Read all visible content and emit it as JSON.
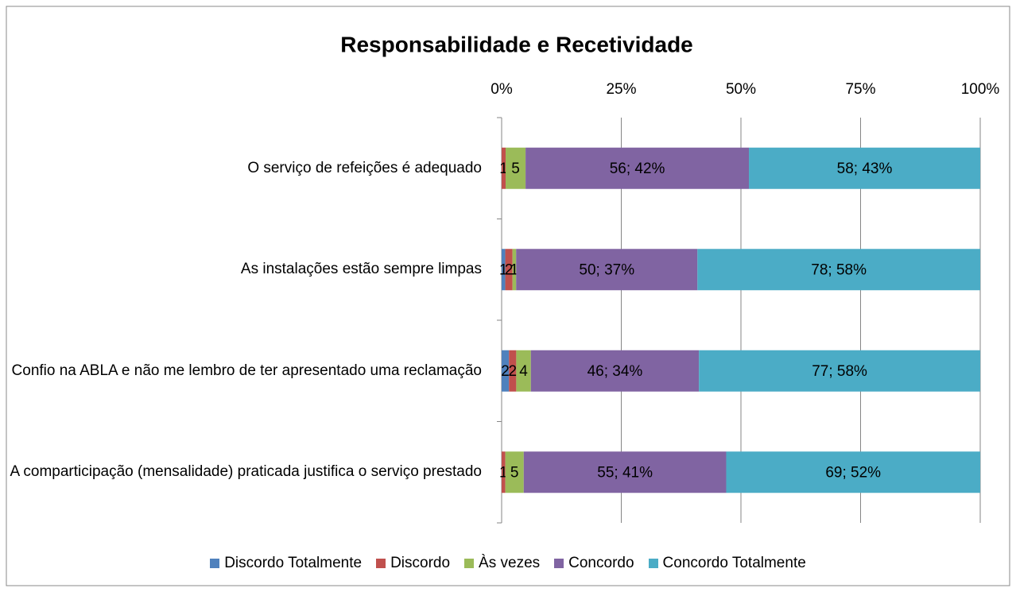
{
  "chart_data": {
    "type": "bar",
    "orientation": "horizontal",
    "stacking": "percent",
    "title": "Responsabilidade e Recetividade",
    "categories": [
      "O serviço de refeições é adequado",
      "As instalações estão sempre limpas",
      "Confio na ABLA e não me lembro de ter apresentado uma reclamação",
      "A comparticipação (mensalidade) praticada justifica o serviço prestado"
    ],
    "series": [
      {
        "name": "Discordo Totalmente",
        "color": "#4f81bd",
        "values": [
          0,
          1,
          2,
          0
        ],
        "value_labels": [
          null,
          "1",
          "2",
          null
        ]
      },
      {
        "name": "Discordo",
        "color": "#c0504d",
        "values": [
          1,
          2,
          2,
          1
        ],
        "value_labels": [
          "1",
          "2",
          "2",
          "1"
        ]
      },
      {
        "name": "Às vezes",
        "color": "#9bbb59",
        "values": [
          5,
          1,
          4,
          5
        ],
        "value_labels": [
          "5",
          "1",
          "4",
          "5"
        ]
      },
      {
        "name": "Concordo",
        "color": "#8064a2",
        "values": [
          56,
          50,
          46,
          55
        ],
        "value_labels": [
          "56; 42%",
          "50; 37%",
          "46; 34%",
          "55; 41%"
        ]
      },
      {
        "name": "Concordo Totalmente",
        "color": "#4bacc6",
        "values": [
          58,
          78,
          77,
          69
        ],
        "value_labels": [
          "58; 43%",
          "78; 58%",
          "77; 58%",
          "69; 52%"
        ]
      }
    ],
    "xlim": [
      0,
      100
    ],
    "xticks": [
      {
        "value": 0,
        "label": "0%"
      },
      {
        "value": 25,
        "label": "25%"
      },
      {
        "value": 50,
        "label": "50%"
      },
      {
        "value": 75,
        "label": "75%"
      },
      {
        "value": 100,
        "label": "100%"
      }
    ],
    "grid": true,
    "legend": "bottom"
  }
}
